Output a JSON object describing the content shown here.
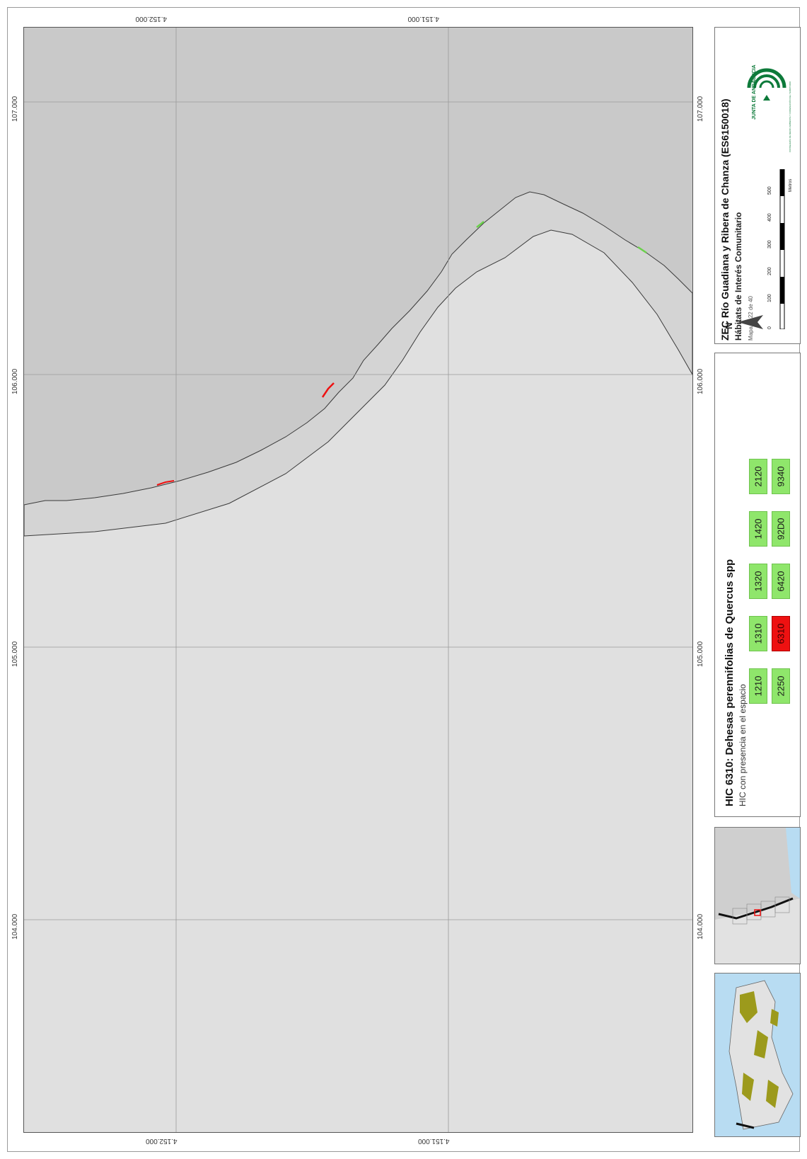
{
  "map": {
    "easting_labels": [
      "107.000",
      "106.000",
      "105.000",
      "104.000"
    ],
    "northing_labels": [
      "4.152.000",
      "4.151.000"
    ]
  },
  "title_block": {
    "main_title": "ZEC Río Guadiana y Ribera de Chanza (ES6150018)",
    "subtitle": "Hábitats de Interés Comunitario",
    "map_number": "Mapa nº 22 de 40",
    "north_label": "N",
    "scale_labels": [
      "0",
      "100",
      "200",
      "300",
      "400",
      "500"
    ],
    "scale_unit": "Metros",
    "logo_text": "JUNTA DE ANDALUCIA",
    "logo_subtext": "CONSEJERÍA DE MEDIO AMBIENTE Y ORDENACIÓN DEL TERRITORIO"
  },
  "legend": {
    "title": "HIC 6310: Dehesas perennifolias de Quercus spp",
    "subtitle": "HIC con presencia en el espacio",
    "codes_row1": [
      "1210",
      "1310",
      "1320",
      "1420",
      "2120"
    ],
    "codes_row2": [
      "2250",
      "6310",
      "6420",
      "92D0",
      "9340"
    ],
    "highlight": "6310"
  },
  "colors": {
    "sea": "#c8c8c8",
    "land": "#e0e0e0",
    "zec_band": "#d3d3d3",
    "hic_present": "#8fe66b",
    "hic_highlight": "#ee1111",
    "inset_water": "#b8dcf2",
    "inset_land": "#e2e2e2",
    "inset_zec": "#9c9a1c"
  }
}
